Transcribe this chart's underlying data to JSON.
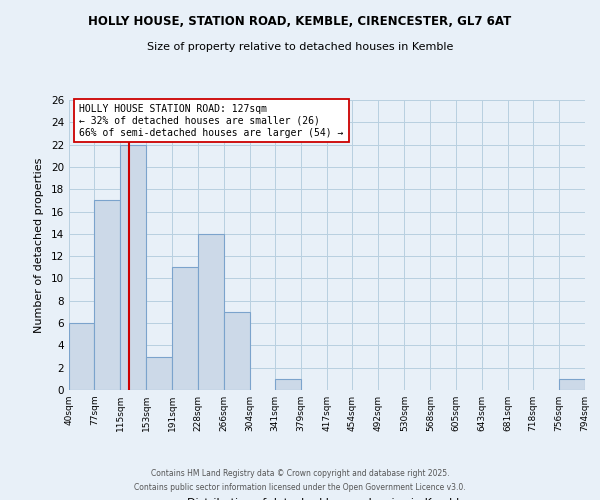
{
  "title1": "HOLLY HOUSE, STATION ROAD, KEMBLE, CIRENCESTER, GL7 6AT",
  "title2": "Size of property relative to detached houses in Kemble",
  "xlabel": "Distribution of detached houses by size in Kemble",
  "ylabel": "Number of detached properties",
  "bin_edges": [
    40,
    77,
    115,
    153,
    191,
    228,
    266,
    304,
    341,
    379,
    417,
    454,
    492,
    530,
    568,
    605,
    643,
    681,
    718,
    756,
    794
  ],
  "bin_counts": [
    6,
    17,
    22,
    3,
    11,
    14,
    7,
    0,
    1,
    0,
    0,
    0,
    0,
    0,
    0,
    0,
    0,
    0,
    0,
    1
  ],
  "bar_color": "#ccd9e8",
  "bar_edge_color": "#7ba3cc",
  "grid_color": "#b8cfe0",
  "bg_color": "#e8f0f8",
  "vline_x": 127,
  "vline_color": "#cc0000",
  "annotation_text": "HOLLY HOUSE STATION ROAD: 127sqm\n← 32% of detached houses are smaller (26)\n66% of semi-detached houses are larger (54) →",
  "annotation_box_color": "#ffffff",
  "annotation_box_edge": "#cc0000",
  "ylim": [
    0,
    26
  ],
  "yticks": [
    0,
    2,
    4,
    6,
    8,
    10,
    12,
    14,
    16,
    18,
    20,
    22,
    24,
    26
  ],
  "footer1": "Contains HM Land Registry data © Crown copyright and database right 2025.",
  "footer2": "Contains public sector information licensed under the Open Government Licence v3.0.",
  "tick_labels": [
    "40sqm",
    "77sqm",
    "115sqm",
    "153sqm",
    "191sqm",
    "228sqm",
    "266sqm",
    "304sqm",
    "341sqm",
    "379sqm",
    "417sqm",
    "454sqm",
    "492sqm",
    "530sqm",
    "568sqm",
    "605sqm",
    "643sqm",
    "681sqm",
    "718sqm",
    "756sqm",
    "794sqm"
  ]
}
